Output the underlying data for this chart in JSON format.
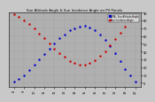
{
  "title": "Sun Altitude Angle & Sun Incidence Angle on PV Panels",
  "legend": [
    "HOA - Sun Altitude Angle",
    "Sun Incidence Angle"
  ],
  "legend_colors": [
    "#0000cc",
    "#cc0000"
  ],
  "bg_color": "#c8c8c8",
  "plot_bg_color": "#b0b0b0",
  "grid_color": "#808080",
  "ylim": [
    -5,
    90
  ],
  "yticks": [
    0,
    10,
    20,
    30,
    40,
    50,
    60,
    70,
    80,
    90
  ],
  "ytick_labels": [
    "0",
    "10",
    "20",
    "30",
    "40",
    "50",
    "60",
    "70",
    "80",
    "90"
  ],
  "time_labels": [
    "8",
    "9",
    "10",
    "11",
    "12",
    "13",
    "14",
    "15",
    "16",
    "17",
    "18",
    "19",
    "20"
  ],
  "altitude_x": [
    0,
    0.5,
    1,
    1.5,
    2,
    2.5,
    3,
    3.5,
    4,
    4.5,
    5,
    5.5,
    6,
    6.5,
    7,
    7.5,
    8,
    8.5,
    9,
    9.5,
    10,
    10.5,
    11,
    11.5,
    12
  ],
  "altitude_y": [
    1,
    5,
    10,
    16,
    23,
    30,
    37,
    44,
    51,
    57,
    62,
    67,
    70,
    72,
    73,
    71,
    67,
    62,
    55,
    47,
    38,
    28,
    18,
    9,
    2
  ],
  "incidence_x": [
    0,
    0.5,
    1,
    1.5,
    2,
    2.5,
    3,
    3.5,
    4,
    4.5,
    5,
    5.5,
    6,
    6.5,
    7,
    7.5,
    8,
    8.5,
    9,
    9.5,
    10,
    10.5,
    11,
    11.5,
    12
  ],
  "incidence_y": [
    88,
    85,
    80,
    75,
    70,
    63,
    57,
    50,
    44,
    38,
    33,
    28,
    25,
    23,
    23,
    25,
    29,
    34,
    40,
    48,
    56,
    64,
    72,
    80,
    86
  ]
}
